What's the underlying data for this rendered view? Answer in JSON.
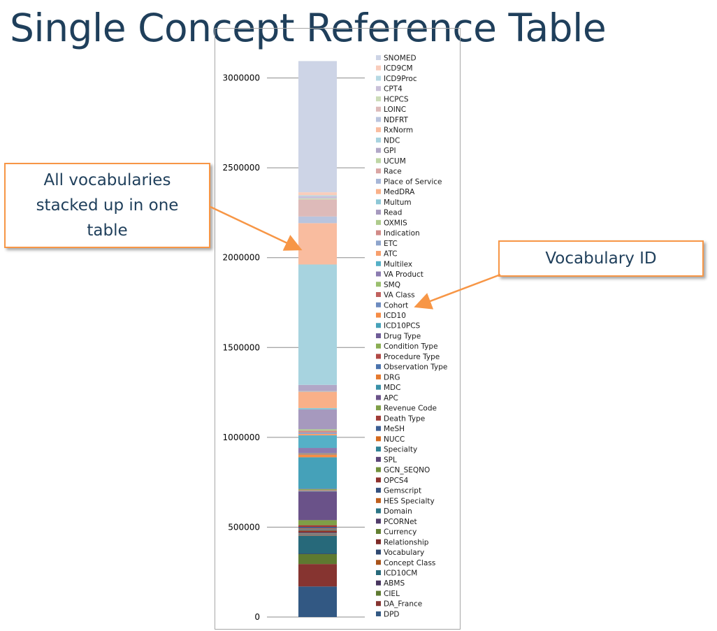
{
  "slide": {
    "title": "Single Concept Reference Table",
    "callout_left": "All vocabularies stacked up in one table",
    "callout_right": "Vocabulary ID"
  },
  "chart_data": {
    "type": "bar",
    "stacked": true,
    "title": "",
    "xlabel": "",
    "ylabel": "",
    "ylim": [
      0,
      3150000
    ],
    "yticks": [
      0,
      500000,
      1000000,
      1500000,
      2000000,
      2500000,
      3000000
    ],
    "grid": true,
    "legend_position": "right",
    "series": [
      {
        "name": "SNOMED",
        "value": 730000,
        "color": "#CDD4E6"
      },
      {
        "name": "ICD9CM",
        "value": 17000,
        "color": "#F9CDBC"
      },
      {
        "name": "ICD9Proc",
        "value": 5000,
        "color": "#B6D9E4"
      },
      {
        "name": "CPT4",
        "value": 12000,
        "color": "#C9C0D9"
      },
      {
        "name": "HCPCS",
        "value": 6000,
        "color": "#CCDCB8"
      },
      {
        "name": "LOINC",
        "value": 95000,
        "color": "#DDBAB9"
      },
      {
        "name": "NDFRT",
        "value": 37000,
        "color": "#B9C4DE"
      },
      {
        "name": "RxNorm",
        "value": 230000,
        "color": "#F9BC9F"
      },
      {
        "name": "NDC",
        "value": 670000,
        "color": "#A7D3DF"
      },
      {
        "name": "GPI",
        "value": 35000,
        "color": "#B1A7C7"
      },
      {
        "name": "UCUM",
        "value": 2000,
        "color": "#BED6A4"
      },
      {
        "name": "Race",
        "value": 1000,
        "color": "#D9A5A3"
      },
      {
        "name": "Place of Service",
        "value": 1000,
        "color": "#A6B6D7"
      },
      {
        "name": "MedDRA",
        "value": 90000,
        "color": "#F9B088"
      },
      {
        "name": "Multum",
        "value": 8000,
        "color": "#8DC7D6"
      },
      {
        "name": "Read",
        "value": 110000,
        "color": "#A699BE"
      },
      {
        "name": "OXMIS",
        "value": 8000,
        "color": "#AECB8C"
      },
      {
        "name": "Indication",
        "value": 10000,
        "color": "#D18A87"
      },
      {
        "name": "ETC",
        "value": 8000,
        "color": "#8EA4CC"
      },
      {
        "name": "ATC",
        "value": 8000,
        "color": "#F79F6C"
      },
      {
        "name": "Multilex",
        "value": 70000,
        "color": "#55B0C7"
      },
      {
        "name": "VA Product",
        "value": 30000,
        "color": "#8B7BB0"
      },
      {
        "name": "SMQ",
        "value": 3000,
        "color": "#9ABF6E"
      },
      {
        "name": "VA Class",
        "value": 2000,
        "color": "#C0615E"
      },
      {
        "name": "Cohort",
        "value": 2000,
        "color": "#6D8BBF"
      },
      {
        "name": "ICD10",
        "value": 15000,
        "color": "#F68C45"
      },
      {
        "name": "ICD10PCS",
        "value": 175000,
        "color": "#45A1B9"
      },
      {
        "name": "Drug Type",
        "value": 2000,
        "color": "#6E5C97"
      },
      {
        "name": "Condition Type",
        "value": 5000,
        "color": "#8AAD53"
      },
      {
        "name": "Procedure Type",
        "value": 2000,
        "color": "#B04845"
      },
      {
        "name": "Observation Type",
        "value": 2000,
        "color": "#4A72AC"
      },
      {
        "name": "DRG",
        "value": 2000,
        "color": "#E57A30"
      },
      {
        "name": "MDC",
        "value": 2000,
        "color": "#3990A8"
      },
      {
        "name": "APC",
        "value": 160000,
        "color": "#6A5289"
      },
      {
        "name": "Revenue Code",
        "value": 28000,
        "color": "#7F9F47"
      },
      {
        "name": "Death Type",
        "value": 10000,
        "color": "#A03B37"
      },
      {
        "name": "MeSH",
        "value": 8000,
        "color": "#3C5E93"
      },
      {
        "name": "NUCC",
        "value": 4000,
        "color": "#D4691E"
      },
      {
        "name": "Specialty",
        "value": 3000,
        "color": "#2F8296"
      },
      {
        "name": "SPL",
        "value": 3000,
        "color": "#5B4478"
      },
      {
        "name": "GCN_SEQNO",
        "value": 3000,
        "color": "#708F3A"
      },
      {
        "name": "OPCS4",
        "value": 10000,
        "color": "#8E302D"
      },
      {
        "name": "Gemscript",
        "value": 4000,
        "color": "#34517F"
      },
      {
        "name": "HES Specialty",
        "value": 2000,
        "color": "#BE5E1C"
      },
      {
        "name": "Domain",
        "value": 2000,
        "color": "#2A7485"
      },
      {
        "name": "PCORNet",
        "value": 2000,
        "color": "#513C6A"
      },
      {
        "name": "Currency",
        "value": 2000,
        "color": "#627F31"
      },
      {
        "name": "Relationship",
        "value": 2000,
        "color": "#7D2A27"
      },
      {
        "name": "Vocabulary",
        "value": 2000,
        "color": "#2E4870"
      },
      {
        "name": "Concept Class",
        "value": 2000,
        "color": "#A8531A"
      },
      {
        "name": "ICD10CM",
        "value": 100000,
        "color": "#27697A"
      },
      {
        "name": "ABMS",
        "value": 2000,
        "color": "#47355E"
      },
      {
        "name": "CIEL",
        "value": 55000,
        "color": "#5E7A30"
      },
      {
        "name": "DA_France",
        "value": 125000,
        "color": "#863430"
      },
      {
        "name": "DPD",
        "value": 170000,
        "color": "#325883"
      }
    ]
  }
}
